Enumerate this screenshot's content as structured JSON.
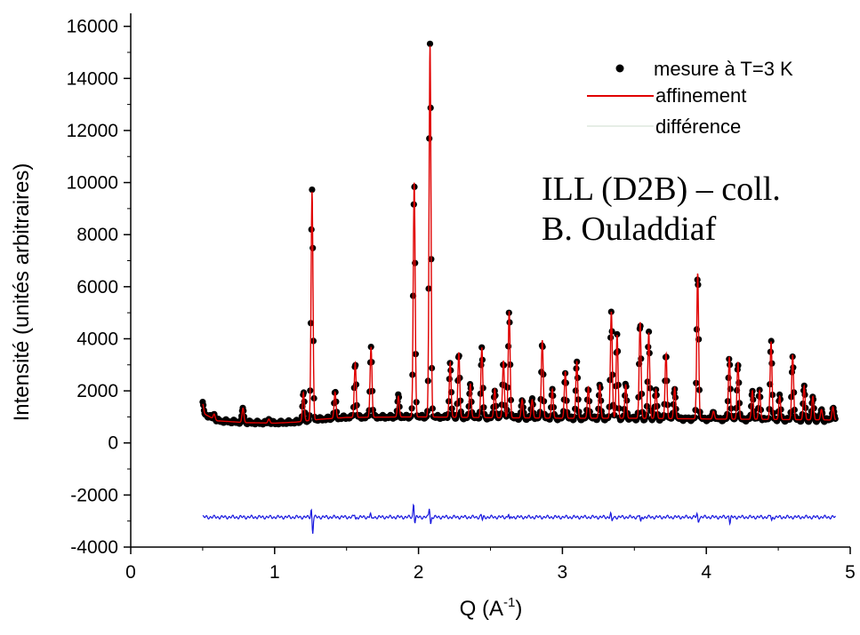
{
  "chart_data": {
    "type": "scatter",
    "xlabel": "Q (A",
    "xlabel_sup": "-1",
    "xlabel_close": ")",
    "ylabel": "Intensité (unités arbitraires)",
    "xlim": [
      0,
      5
    ],
    "ylim": [
      -4000,
      16500
    ],
    "x_ticks": [
      0,
      1,
      2,
      3,
      4,
      5
    ],
    "y_ticks": [
      -4000,
      -2000,
      0,
      2000,
      4000,
      6000,
      8000,
      10000,
      12000,
      14000,
      16000
    ],
    "legend_position": "top-right",
    "grid": false,
    "annotation_lines": [
      "ILL (D2B) – coll.",
      "B. Ouladdiaf"
    ],
    "series": [
      {
        "name": "mesure à T=3 K",
        "style": "points",
        "color": "#000000"
      },
      {
        "name": "affinement",
        "style": "line",
        "color": "#e00000"
      },
      {
        "name": "différence",
        "style": "line",
        "color": "#1a1adf"
      }
    ],
    "q_range": [
      0.5,
      4.9
    ],
    "background": [
      [
        0.5,
        1150
      ],
      [
        0.6,
        850
      ],
      [
        0.8,
        780
      ],
      [
        1.0,
        760
      ],
      [
        1.15,
        800
      ],
      [
        1.3,
        900
      ],
      [
        1.5,
        980
      ],
      [
        2.0,
        1000
      ],
      [
        2.5,
        970
      ],
      [
        3.0,
        950
      ],
      [
        3.5,
        950
      ],
      [
        4.0,
        920
      ],
      [
        4.5,
        900
      ],
      [
        4.9,
        880
      ]
    ],
    "peaks": [
      [
        0.5,
        350
      ],
      [
        0.58,
        200
      ],
      [
        0.78,
        550
      ],
      [
        0.96,
        150
      ],
      [
        1.2,
        1100
      ],
      [
        1.26,
        8800
      ],
      [
        1.42,
        1000
      ],
      [
        1.56,
        2100
      ],
      [
        1.67,
        2700
      ],
      [
        1.86,
        800
      ],
      [
        1.97,
        9000
      ],
      [
        2.08,
        14300
      ],
      [
        2.22,
        2100
      ],
      [
        2.28,
        2500
      ],
      [
        2.36,
        1300
      ],
      [
        2.44,
        2700
      ],
      [
        2.53,
        1100
      ],
      [
        2.59,
        2200
      ],
      [
        2.63,
        4100
      ],
      [
        2.72,
        700
      ],
      [
        2.79,
        700
      ],
      [
        2.86,
        3000
      ],
      [
        2.93,
        1100
      ],
      [
        3.02,
        1800
      ],
      [
        3.1,
        2200
      ],
      [
        3.18,
        1200
      ],
      [
        3.26,
        1300
      ],
      [
        3.34,
        4100
      ],
      [
        3.38,
        3200
      ],
      [
        3.44,
        1300
      ],
      [
        3.54,
        3700
      ],
      [
        3.6,
        3300
      ],
      [
        3.65,
        1100
      ],
      [
        3.72,
        2500
      ],
      [
        3.78,
        1200
      ],
      [
        3.94,
        5600
      ],
      [
        4.05,
        300
      ],
      [
        4.16,
        2400
      ],
      [
        4.22,
        2200
      ],
      [
        4.32,
        1100
      ],
      [
        4.37,
        1100
      ],
      [
        4.45,
        3000
      ],
      [
        4.51,
        900
      ],
      [
        4.6,
        2500
      ],
      [
        4.68,
        1300
      ],
      [
        4.74,
        900
      ],
      [
        4.8,
        400
      ],
      [
        4.88,
        500
      ]
    ],
    "difference_baseline": -2850,
    "difference_features": [
      [
        1.26,
        350,
        -650
      ],
      [
        1.97,
        550,
        -250
      ],
      [
        2.08,
        400,
        -300
      ],
      [
        1.56,
        120,
        -100
      ],
      [
        1.67,
        150,
        -120
      ],
      [
        2.44,
        100,
        -120
      ],
      [
        2.63,
        150,
        -150
      ],
      [
        3.34,
        150,
        -200
      ],
      [
        3.54,
        100,
        -220
      ],
      [
        3.94,
        120,
        -200
      ],
      [
        4.16,
        100,
        -250
      ],
      [
        4.45,
        100,
        -150
      ]
    ]
  }
}
